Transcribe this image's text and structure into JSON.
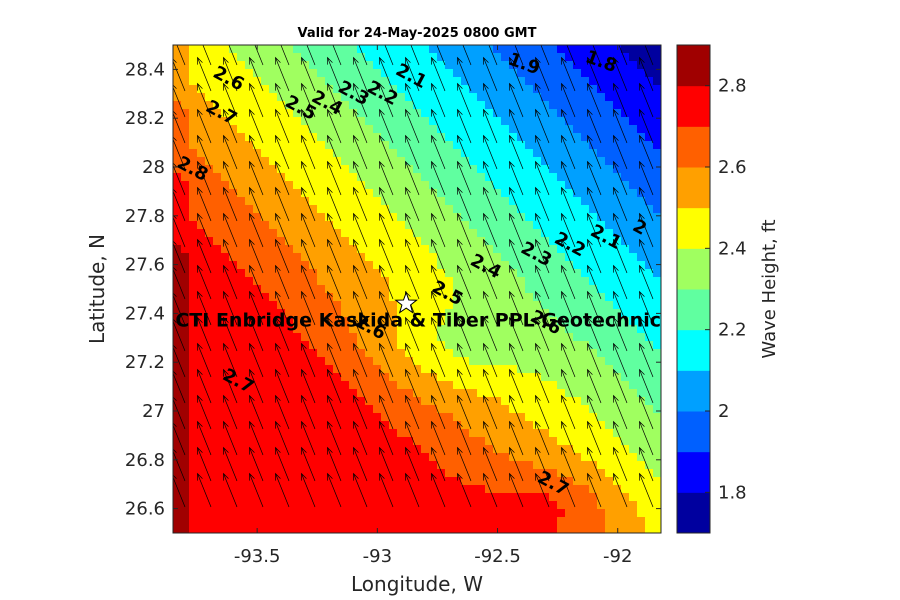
{
  "chart_data": {
    "type": "contour",
    "title": "Valid for 24-May-2025 0800 GMT",
    "xlabel": "Longitude, W",
    "ylabel": "Latitude, N",
    "xlim": [
      -93.85,
      -91.82
    ],
    "ylim": [
      26.5,
      28.5
    ],
    "x_ticks": [
      -93.5,
      -93,
      -92.5,
      -92
    ],
    "x_tick_labels": [
      "-93.5",
      "-93",
      "-92.5",
      "-92"
    ],
    "y_ticks": [
      26.6,
      26.8,
      27,
      27.2,
      27.4,
      27.6,
      27.8,
      28,
      28.2,
      28.4
    ],
    "y_tick_labels": [
      "26.6",
      "26.8",
      "27",
      "27.2",
      "27.4",
      "27.6",
      "27.8",
      "28",
      "28.2",
      "28.4"
    ],
    "colorbar": {
      "label": "Wave Height, ft",
      "range": [
        1.7,
        2.9
      ],
      "ticks": [
        1.8,
        2.0,
        2.2,
        2.4,
        2.6,
        2.8
      ],
      "tick_labels": [
        "1.8",
        "2",
        "2.2",
        "2.4",
        "2.6",
        "2.8"
      ],
      "colors": [
        "#00009f",
        "#0000ff",
        "#0060ff",
        "#00a0ff",
        "#00ffff",
        "#60ffa0",
        "#a0ff60",
        "#ffff00",
        "#ffa000",
        "#ff6000",
        "#ff0000",
        "#a00000"
      ]
    },
    "contour_labels": [
      {
        "text": "1.8",
        "lon": -92.07,
        "lat": 28.43
      },
      {
        "text": "1.9",
        "lon": -92.39,
        "lat": 28.42
      },
      {
        "text": "2.1",
        "lon": -92.86,
        "lat": 28.37
      },
      {
        "text": "2.2",
        "lon": -92.98,
        "lat": 28.3
      },
      {
        "text": "2.3",
        "lon": -93.1,
        "lat": 28.3
      },
      {
        "text": "2.4",
        "lon": -93.21,
        "lat": 28.26
      },
      {
        "text": "2.5",
        "lon": -93.32,
        "lat": 28.24
      },
      {
        "text": "2.6",
        "lon": -93.62,
        "lat": 28.36
      },
      {
        "text": "2.7",
        "lon": -93.65,
        "lat": 28.22
      },
      {
        "text": "2.8",
        "lon": -93.77,
        "lat": 27.99
      },
      {
        "text": "2",
        "lon": -91.91,
        "lat": 27.75
      },
      {
        "text": "2.1",
        "lon": -92.05,
        "lat": 27.71
      },
      {
        "text": "2.2",
        "lon": -92.2,
        "lat": 27.68
      },
      {
        "text": "2.3",
        "lon": -92.34,
        "lat": 27.64
      },
      {
        "text": "2.4",
        "lon": -92.55,
        "lat": 27.59
      },
      {
        "text": "2.5",
        "lon": -92.71,
        "lat": 27.48
      },
      {
        "text": "2.6",
        "lon": -92.3,
        "lat": 27.36
      },
      {
        "text": "2.6",
        "lon": -93.03,
        "lat": 27.34
      },
      {
        "text": "2.7",
        "lon": -93.58,
        "lat": 27.12
      },
      {
        "text": "2.7",
        "lon": -92.27,
        "lat": 26.7
      }
    ],
    "station": {
      "label": "CTI Enbridge  Kaskida & Tiber PPL Geotechnic",
      "lon": -92.88,
      "lat": 27.44
    },
    "arrow_direction": "toward north-northwest",
    "grid": false
  }
}
